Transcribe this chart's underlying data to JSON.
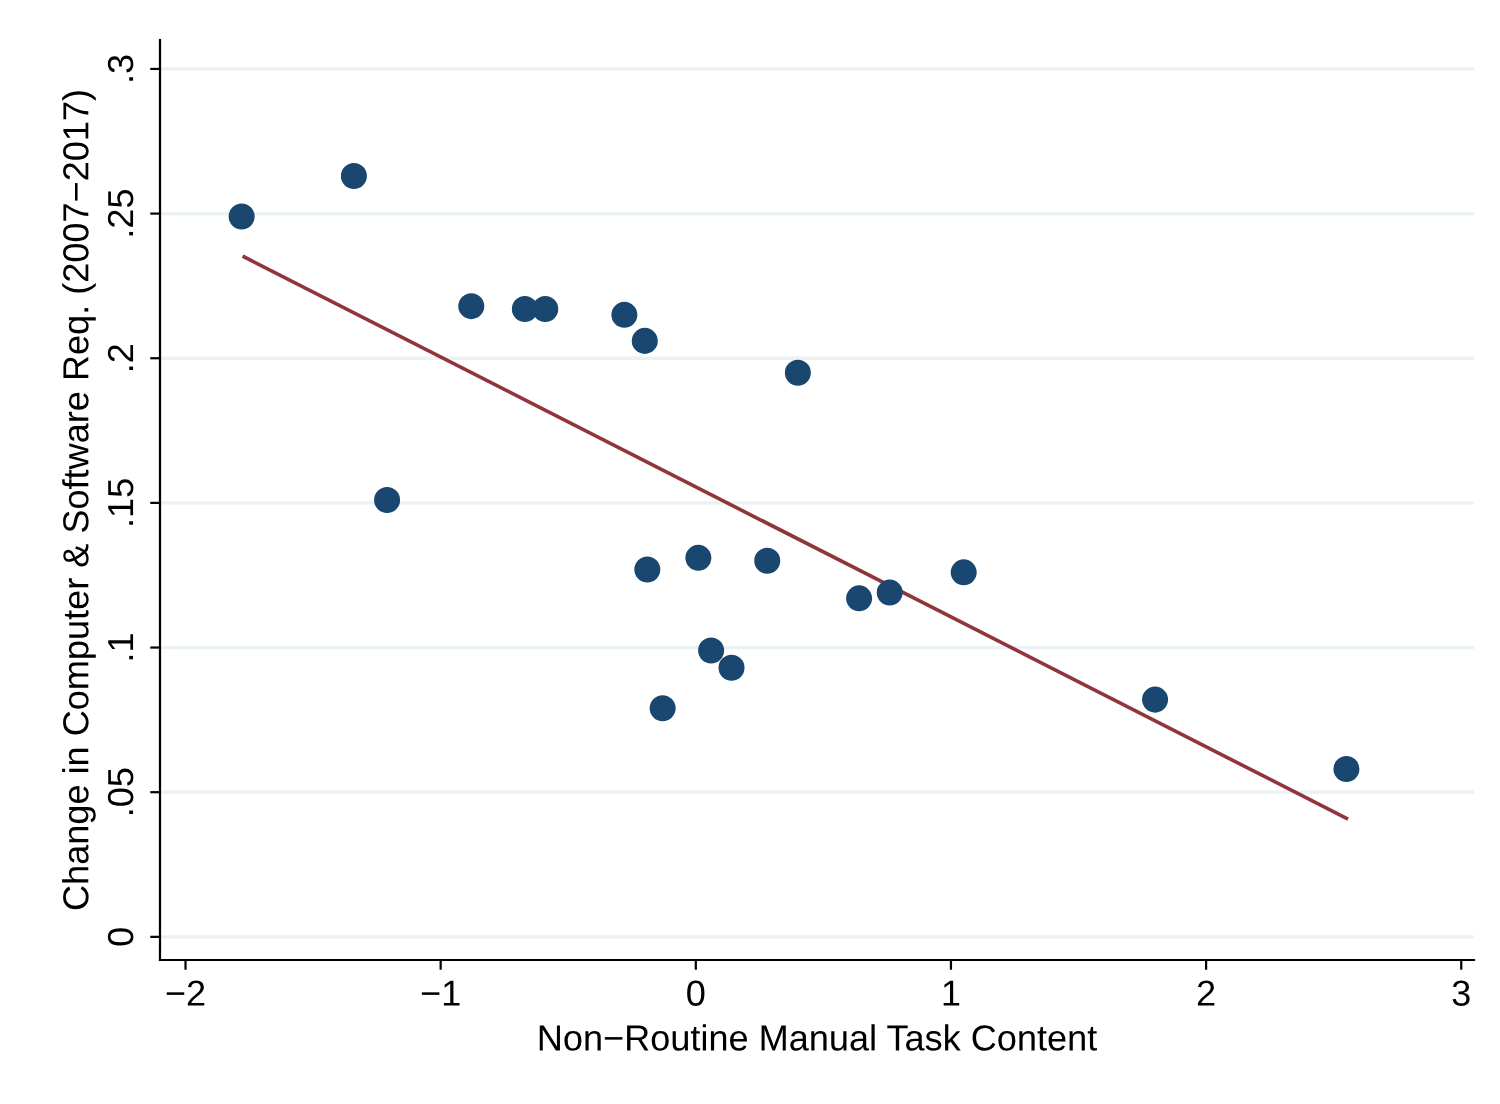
{
  "chart_data": {
    "type": "scatter",
    "xlabel": "Non−Routine Manual Task Content",
    "ylabel": "Change in Computer & Software Req. (2007−2017)",
    "xlim": [
      -2.1,
      3.05
    ],
    "ylim": [
      -0.008,
      0.31
    ],
    "xticks": [
      {
        "value": -2,
        "label": "−2"
      },
      {
        "value": -1,
        "label": "−1"
      },
      0,
      1,
      2,
      3
    ],
    "yticks": [
      {
        "value": 0,
        "label": "0"
      },
      {
        "value": 0.05,
        "label": ".05"
      },
      {
        "value": 0.1,
        "label": ".1"
      },
      {
        "value": 0.15,
        "label": ".15"
      },
      {
        "value": 0.2,
        "label": ".2"
      },
      {
        "value": 0.25,
        "label": ".25"
      },
      {
        "value": 0.3,
        "label": ".3"
      }
    ],
    "grid": "y",
    "series": [
      {
        "marker": "circle",
        "color": "#1a476f",
        "x": [
          -1.78,
          -1.34,
          -1.21,
          -0.88,
          -0.67,
          -0.59,
          -0.28,
          -0.2,
          0.4,
          -0.19,
          0.01,
          0.28,
          -0.13,
          0.06,
          0.14,
          0.64,
          0.76,
          1.05,
          1.8,
          2.55
        ],
        "values": [
          0.249,
          0.263,
          0.151,
          0.218,
          0.217,
          0.217,
          0.215,
          0.206,
          0.195,
          0.127,
          0.131,
          0.13,
          0.079,
          0.099,
          0.093,
          0.117,
          0.119,
          0.126,
          0.082,
          0.058
        ]
      },
      {
        "type": "line",
        "marker": "none",
        "color": "#90353b",
        "x": [
          -1.77,
          2.55
        ],
        "values": [
          0.235,
          0.041
        ]
      }
    ]
  }
}
